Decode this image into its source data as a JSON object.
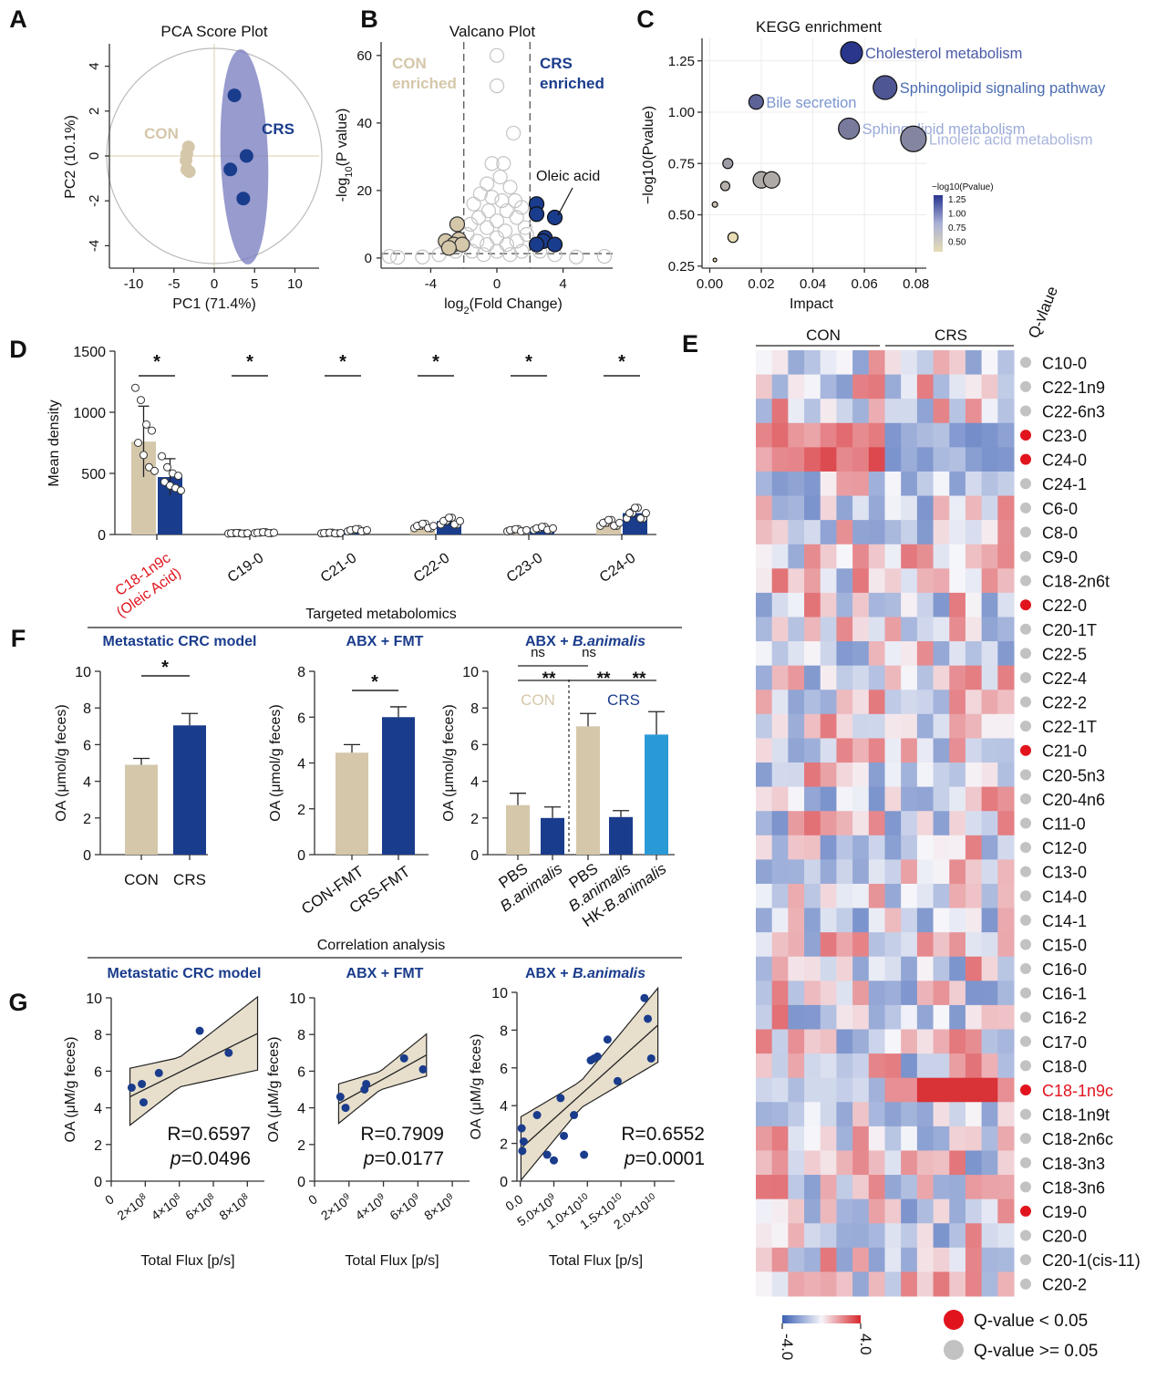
{
  "panel_letters": [
    "A",
    "B",
    "C",
    "D",
    "E",
    "F",
    "G"
  ],
  "section_titles": {
    "targeted": "Targeted metabolomics",
    "correlation": "Correlation analysis"
  },
  "colors": {
    "con": "#d5c7aa",
    "crs": "#1a3c8c",
    "hk": "#2a9ad6",
    "red": "#e1141e",
    "grey": "#c2c2c2",
    "ellipse_fill": "#7b7fc0"
  },
  "chart_data": [
    {
      "id": "A",
      "type": "scatter",
      "title": "PCA Score Plot",
      "xlabel": "PC1 (71.4%)",
      "ylabel": "PC2 (10.1%)",
      "xlim": [
        -13,
        13
      ],
      "ylim": [
        -5,
        5
      ],
      "xticks": [
        -10,
        -5,
        0,
        5,
        10
      ],
      "yticks": [
        4,
        2,
        0,
        -2,
        -4
      ],
      "labels": [
        "CON",
        "CRS"
      ],
      "series": [
        {
          "name": "CON",
          "points": [
            [
              -3.2,
              0.4
            ],
            [
              -3.4,
              0.1
            ],
            [
              -3.5,
              -0.2
            ],
            [
              -3.4,
              -0.6
            ],
            [
              -3.1,
              -0.7
            ]
          ]
        },
        {
          "name": "CRS",
          "points": [
            [
              2.5,
              2.7
            ],
            [
              4,
              0
            ],
            [
              2,
              -0.6
            ],
            [
              3.6,
              -1.9
            ]
          ]
        }
      ]
    },
    {
      "id": "B",
      "type": "scatter",
      "title": "Valcano Plot",
      "xlabel": "log2(Fold Change)",
      "ylabel": "-log10(P value)",
      "xlim": [
        -7,
        7
      ],
      "ylim": [
        -3,
        64
      ],
      "xticks": [
        -4,
        0,
        4
      ],
      "yticks": [
        0,
        20,
        40,
        60
      ],
      "labels": [
        "CON",
        "enriched",
        "CRS",
        "enriched",
        "Oleic acid"
      ],
      "series": [
        {
          "name": "CON",
          "points": [
            [
              -2.4,
              10
            ],
            [
              -3.1,
              5
            ],
            [
              -2.3,
              5.5
            ],
            [
              -2.6,
              4
            ],
            [
              -2.1,
              4
            ],
            [
              -2.9,
              3
            ]
          ]
        },
        {
          "name": "CRS",
          "points": [
            [
              2.4,
              16
            ],
            [
              2.4,
              13
            ],
            [
              3.5,
              12
            ],
            [
              2.9,
              6
            ],
            [
              2.8,
              5
            ],
            [
              2.4,
              4
            ],
            [
              3.5,
              4
            ]
          ]
        },
        {
          "name": "ns",
          "points": [
            [
              0,
              60
            ],
            [
              0,
              51
            ],
            [
              1,
              37
            ],
            [
              -0.3,
              28
            ],
            [
              0.4,
              28
            ],
            [
              0.2,
              24
            ],
            [
              -0.6,
              22
            ],
            [
              0.8,
              21
            ],
            [
              -1,
              19
            ],
            [
              -0.3,
              18
            ],
            [
              0.3,
              17
            ],
            [
              1.1,
              17
            ],
            [
              -1.4,
              16
            ],
            [
              1.5,
              15
            ],
            [
              -0.5,
              14
            ],
            [
              0.6,
              14
            ],
            [
              -1.1,
              12
            ],
            [
              1.2,
              12
            ],
            [
              0,
              11
            ],
            [
              -1.6,
              10
            ],
            [
              1.7,
              9
            ],
            [
              -0.6,
              9
            ],
            [
              0.5,
              8
            ],
            [
              -1.8,
              7
            ],
            [
              1.8,
              7
            ],
            [
              0,
              6
            ],
            [
              -1.2,
              5
            ],
            [
              1.2,
              5
            ],
            [
              -0.6,
              4
            ],
            [
              0.6,
              4
            ],
            [
              -2.5,
              2
            ],
            [
              2.6,
              2
            ],
            [
              -1.5,
              2
            ],
            [
              1.5,
              2
            ],
            [
              0,
              2
            ],
            [
              -0.8,
              1
            ],
            [
              0.8,
              1
            ],
            [
              -3.5,
              1
            ],
            [
              3.5,
              1
            ],
            [
              -6.5,
              0.5
            ],
            [
              -6,
              0.2
            ],
            [
              6.5,
              0.5
            ],
            [
              -4.5,
              0.3
            ],
            [
              4.8,
              0.3
            ]
          ]
        }
      ]
    },
    {
      "id": "C",
      "type": "scatter",
      "title": "KEGG enrichment",
      "xlabel": "Impact",
      "ylabel": "−log10(Pvalue)",
      "xlim": [
        -0.003,
        0.084
      ],
      "ylim": [
        0.24,
        1.36
      ],
      "xticks": [
        "0.00",
        "0.02",
        "0.04",
        "0.06",
        "0.08"
      ],
      "yticks": [
        "0.25",
        "0.50",
        "0.75",
        "1.00",
        "1.25"
      ],
      "legend_title": "−log10(Pvalue)",
      "legend_ticks": [
        "1.25",
        "1.00",
        "0.75",
        "0.50"
      ],
      "points": [
        {
          "x": 0.055,
          "y": 1.29,
          "size": 22,
          "label": "Cholesterol metabolism"
        },
        {
          "x": 0.068,
          "y": 1.12,
          "size": 24,
          "label": "Sphingolipid signaling pathway"
        },
        {
          "x": 0.018,
          "y": 1.05,
          "size": 14,
          "label": "Bile secretion"
        },
        {
          "x": 0.054,
          "y": 0.92,
          "size": 21,
          "label": "Sphingolipid metabolism"
        },
        {
          "x": 0.079,
          "y": 0.87,
          "size": 26,
          "label": "Linoleic acid metabolism"
        },
        {
          "x": 0.007,
          "y": 0.75,
          "size": 9
        },
        {
          "x": 0.02,
          "y": 0.67,
          "size": 16
        },
        {
          "x": 0.024,
          "y": 0.67,
          "size": 16
        },
        {
          "x": 0.006,
          "y": 0.64,
          "size": 8
        },
        {
          "x": 0.002,
          "y": 0.55,
          "size": 4
        },
        {
          "x": 0.009,
          "y": 0.39,
          "size": 9
        },
        {
          "x": 0.002,
          "y": 0.28,
          "size": 2
        }
      ]
    },
    {
      "id": "D",
      "type": "bar",
      "ylabel": "Mean density",
      "ylim": [
        0,
        1500
      ],
      "yticks": [
        0,
        500,
        1000,
        1500
      ],
      "categories": [
        "C18-1n9c\n(Oleic Acid)",
        "C19-0",
        "C21-0",
        "C22-0",
        "C23-0",
        "C24-0"
      ],
      "series": [
        {
          "name": "CON",
          "values": [
            760,
            10,
            12,
            70,
            35,
            95
          ]
        },
        {
          "name": "CRS",
          "values": [
            470,
            15,
            35,
            110,
            50,
            175
          ]
        }
      ],
      "significance": [
        "*",
        "*",
        "*",
        "*",
        "*",
        "*"
      ]
    },
    {
      "id": "E",
      "type": "heatmap",
      "groups": [
        "CON",
        "CRS"
      ],
      "qlabel": "Q-vlaue",
      "legend": {
        "low": "-4.0",
        "high": "4.0",
        "sig": "Q-value  <  0.05",
        "ns": "Q-value  >=  0.05"
      },
      "rows": [
        "C10-0",
        "C22-1n9",
        "C22-6n3",
        "C23-0",
        "C24-0",
        "C24-1",
        "C6-0",
        "C8-0",
        "C9-0",
        "C18-2n6t",
        "C22-0",
        "C20-1T",
        "C22-5",
        "C22-4",
        "C22-2",
        "C22-1T",
        "C21-0",
        "C20-5n3",
        "C20-4n6",
        "C11-0",
        "C12-0",
        "C13-0",
        "C14-0",
        "C14-1",
        "C15-0",
        "C16-0",
        "C16-1",
        "C16-2",
        "C17-0",
        "C18-0",
        "C18-1n9c",
        "C18-1n9t",
        "C18-2n6c",
        "C18-3n3",
        "C18-3n6",
        "C19-0",
        "C20-0",
        "C20-1(cis-11)",
        "C20-2"
      ],
      "sig": [
        0,
        0,
        0,
        1,
        1,
        0,
        0,
        0,
        0,
        0,
        1,
        0,
        0,
        0,
        0,
        0,
        1,
        0,
        0,
        0,
        0,
        0,
        0,
        0,
        0,
        0,
        0,
        0,
        0,
        0,
        1,
        0,
        0,
        0,
        0,
        1,
        0,
        0,
        0
      ],
      "highlight_row": "C18-1n9c"
    },
    {
      "id": "F1",
      "type": "bar",
      "title": "Metastatic CRC model",
      "ylabel": "OA (μmol/g feces)",
      "ylim": [
        0,
        10
      ],
      "yticks": [
        0,
        2,
        4,
        6,
        8,
        10
      ],
      "categories": [
        "CON",
        "CRS"
      ],
      "values": [
        4.9,
        7.05
      ],
      "errors": [
        0.35,
        0.65
      ],
      "significance": "*"
    },
    {
      "id": "F2",
      "type": "bar",
      "title": "ABX + FMT",
      "ylabel": "OA (μmol/g feces)",
      "ylim": [
        0,
        8
      ],
      "yticks": [
        0,
        2,
        4,
        6,
        8
      ],
      "categories": [
        "CON-FMT",
        "CRS-FMT"
      ],
      "values": [
        4.45,
        6.0
      ],
      "errors": [
        0.35,
        0.45
      ],
      "significance": "*"
    },
    {
      "id": "F3",
      "type": "bar",
      "title": "ABX + B.animalis",
      "ylabel": "OA (μmol/g feces)",
      "ylim": [
        0,
        10
      ],
      "yticks": [
        0,
        2,
        4,
        6,
        8,
        10
      ],
      "categories": [
        "PBS",
        "B.animalis",
        "PBS",
        "B.animalis",
        "HK-B.animalis"
      ],
      "values": [
        2.7,
        2.0,
        7.0,
        2.05,
        6.55
      ],
      "errors": [
        0.65,
        0.6,
        0.7,
        0.35,
        1.25
      ],
      "group_labels": [
        "CON",
        "CRS"
      ],
      "brackets": [
        "ns",
        "ns",
        "**",
        "**",
        "**"
      ]
    },
    {
      "id": "G1",
      "type": "scatter",
      "title": "Metastatic CRC model",
      "xlabel": "Total Flux [p/s]",
      "ylabel": "OA (μM/g feces)",
      "xlim": [
        0,
        900000000
      ],
      "ylim": [
        0,
        10
      ],
      "xticks": [
        "0",
        "2×10^8",
        "4×10^8",
        "6×10^8",
        "8×10^8"
      ],
      "yticks": [
        0,
        2,
        4,
        6,
        8,
        10
      ],
      "x": [
        120000000,
        180000000,
        190000000,
        280000000,
        520000000,
        690000000
      ],
      "y": [
        5.1,
        5.3,
        4.3,
        5.9,
        8.2,
        7.0
      ],
      "R": "R=0.6597",
      "p_label": "p",
      "p_value": "=0.0496"
    },
    {
      "id": "G2",
      "type": "scatter",
      "title": "ABX + FMT",
      "xlabel": "Total Flux [p/s]",
      "ylabel": "OA (μM/g feces)",
      "xlim": [
        0,
        9000000000
      ],
      "ylim": [
        0,
        10
      ],
      "xticks": [
        "0",
        "2×10^9",
        "4×10^9",
        "6×10^9",
        "8×10^9"
      ],
      "yticks": [
        0,
        2,
        4,
        6,
        8,
        10
      ],
      "x": [
        1500000000,
        1800000000,
        2900000000,
        3000000000,
        5200000000,
        6300000000
      ],
      "y": [
        4.6,
        4.0,
        5.0,
        5.3,
        6.7,
        6.1
      ],
      "R": "R=0.7909",
      "p_label": "p",
      "p_value": "=0.0177"
    },
    {
      "id": "G3",
      "type": "scatter",
      "title": "ABX + B.animalis",
      "xlabel": "Total Flux [p/s]",
      "ylabel": "OA (μM/g feces)",
      "xlim": [
        -500000000,
        23000000000
      ],
      "ylim": [
        0,
        10
      ],
      "xticks": [
        "0.0",
        "5.0×10^9",
        "1.0×10^10",
        "1.5×10^10",
        "2.0×10^10"
      ],
      "yticks": [
        0,
        2,
        4,
        6,
        8,
        10
      ],
      "x": [
        200000000,
        500000000,
        300000000,
        2500000000,
        4000000000,
        5000000000,
        6000000000,
        6500000000,
        8000000000,
        9500000000,
        11000000000,
        10500000000,
        11500000000,
        13000000000,
        14500000000,
        18500000000,
        19000000000,
        19500000000
      ],
      "y": [
        2.8,
        2.1,
        1.6,
        3.5,
        1.4,
        1.1,
        4.4,
        2.4,
        3.5,
        1.4,
        6.5,
        6.4,
        6.6,
        7.5,
        5.3,
        9.7,
        8.6,
        6.5
      ],
      "R": "R=0.6552",
      "p_label": "p",
      "p_value": "=0.0001"
    }
  ]
}
